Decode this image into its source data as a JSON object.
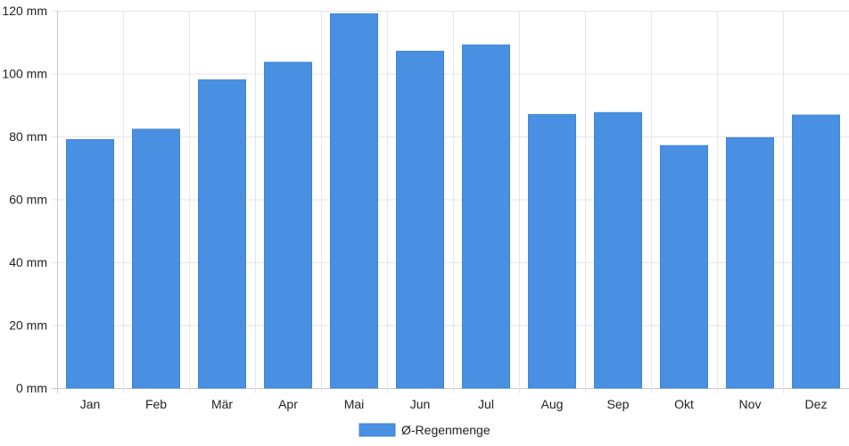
{
  "chart_data": {
    "type": "bar",
    "title": "",
    "xlabel": "",
    "ylabel": "",
    "categories": [
      "Jan",
      "Feb",
      "Mär",
      "Apr",
      "Mai",
      "Jun",
      "Jul",
      "Aug",
      "Sep",
      "Okt",
      "Nov",
      "Dez"
    ],
    "series": [
      {
        "name": "Ø-Regenmenge",
        "values": [
          79,
          82.3,
          98,
          103.6,
          119,
          107.1,
          109.1,
          87,
          87.6,
          77.1,
          79.6,
          86.8
        ],
        "color": "#4a90e2"
      }
    ],
    "ylim": [
      0,
      120
    ],
    "yticks": [
      0,
      20,
      40,
      60,
      80,
      100,
      120
    ],
    "ytick_suffix": " mm",
    "grid": true,
    "legend_position": "bottom-center"
  }
}
